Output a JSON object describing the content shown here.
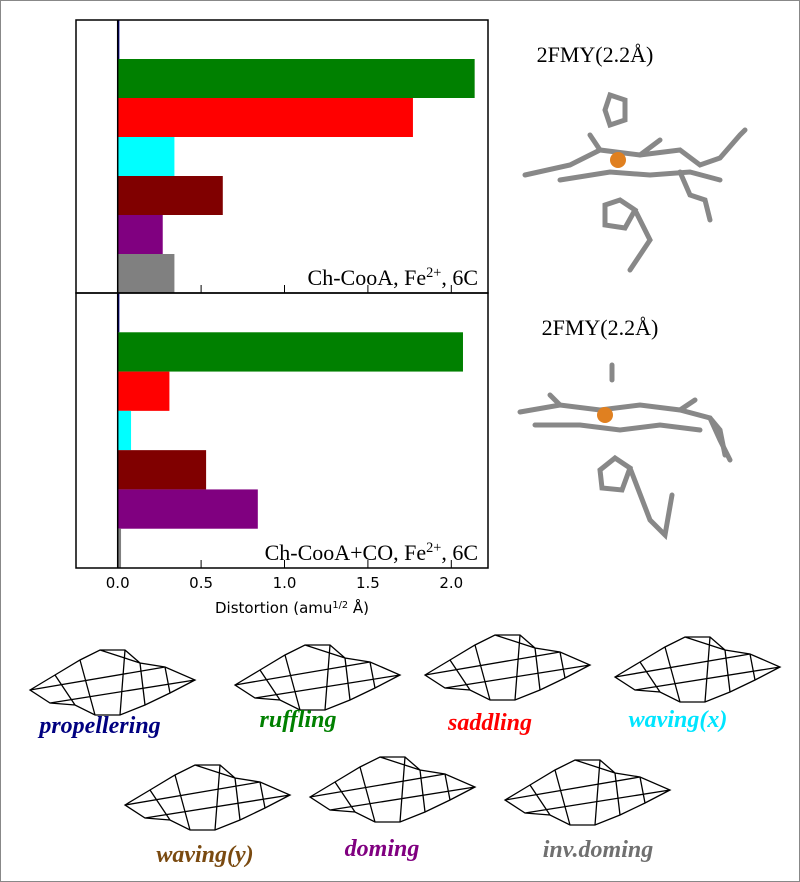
{
  "chart_data": [
    {
      "type": "bar",
      "orientation": "horizontal",
      "values": [
        0.01,
        2.14,
        1.77,
        0.34,
        0.63,
        0.27,
        0.34
      ],
      "colors": [
        "#000080",
        "#008000",
        "#ff0000",
        "#00ffff",
        "#800000",
        "#800080",
        "#808080"
      ],
      "xlim": [
        -0.25,
        2.22
      ],
      "xticks": [
        0,
        0.5,
        1,
        1.5,
        2
      ],
      "tick_labels": false,
      "annotation": [
        "Ch-CooA, Fe",
        "2+",
        ", 6C"
      ]
    },
    {
      "type": "bar",
      "orientation": "horizontal",
      "values": [
        0.01,
        2.07,
        0.31,
        0.08,
        0.53,
        0.84,
        0.02
      ],
      "colors": [
        "#000080",
        "#008000",
        "#ff0000",
        "#00ffff",
        "#800000",
        "#800080",
        "#808080"
      ],
      "xlim": [
        -0.25,
        2.22
      ],
      "xticks": [
        {
          "value": 0,
          "label": "0.0"
        },
        {
          "value": 0.5,
          "label": "0.5"
        },
        {
          "value": 1,
          "label": "1.0"
        },
        {
          "value": 1.5,
          "label": "1.5"
        },
        {
          "value": 2,
          "label": "2.0"
        }
      ],
      "tick_labels": true,
      "annotation": [
        "Ch-CooA+CO, Fe",
        "2+",
        ", 6C"
      ],
      "xlabel": [
        "Distortion (amu",
        "1/2",
        " Å)"
      ]
    }
  ],
  "structures": [
    "2FMY(2.2Å)",
    "2FMY(2.2Å)"
  ],
  "modes": [
    {
      "name": "propellering",
      "color": "#000080"
    },
    {
      "name": "ruffling",
      "color": "#008000"
    },
    {
      "name": "saddling",
      "color": "#ff0000"
    },
    {
      "name": "waving(x)",
      "color": "#00e5ff"
    },
    {
      "name": "waving(y)",
      "color": "#7a4a10"
    },
    {
      "name": "doming",
      "color": "#800080"
    },
    {
      "name": "inv.doming",
      "color": "#707070"
    }
  ]
}
